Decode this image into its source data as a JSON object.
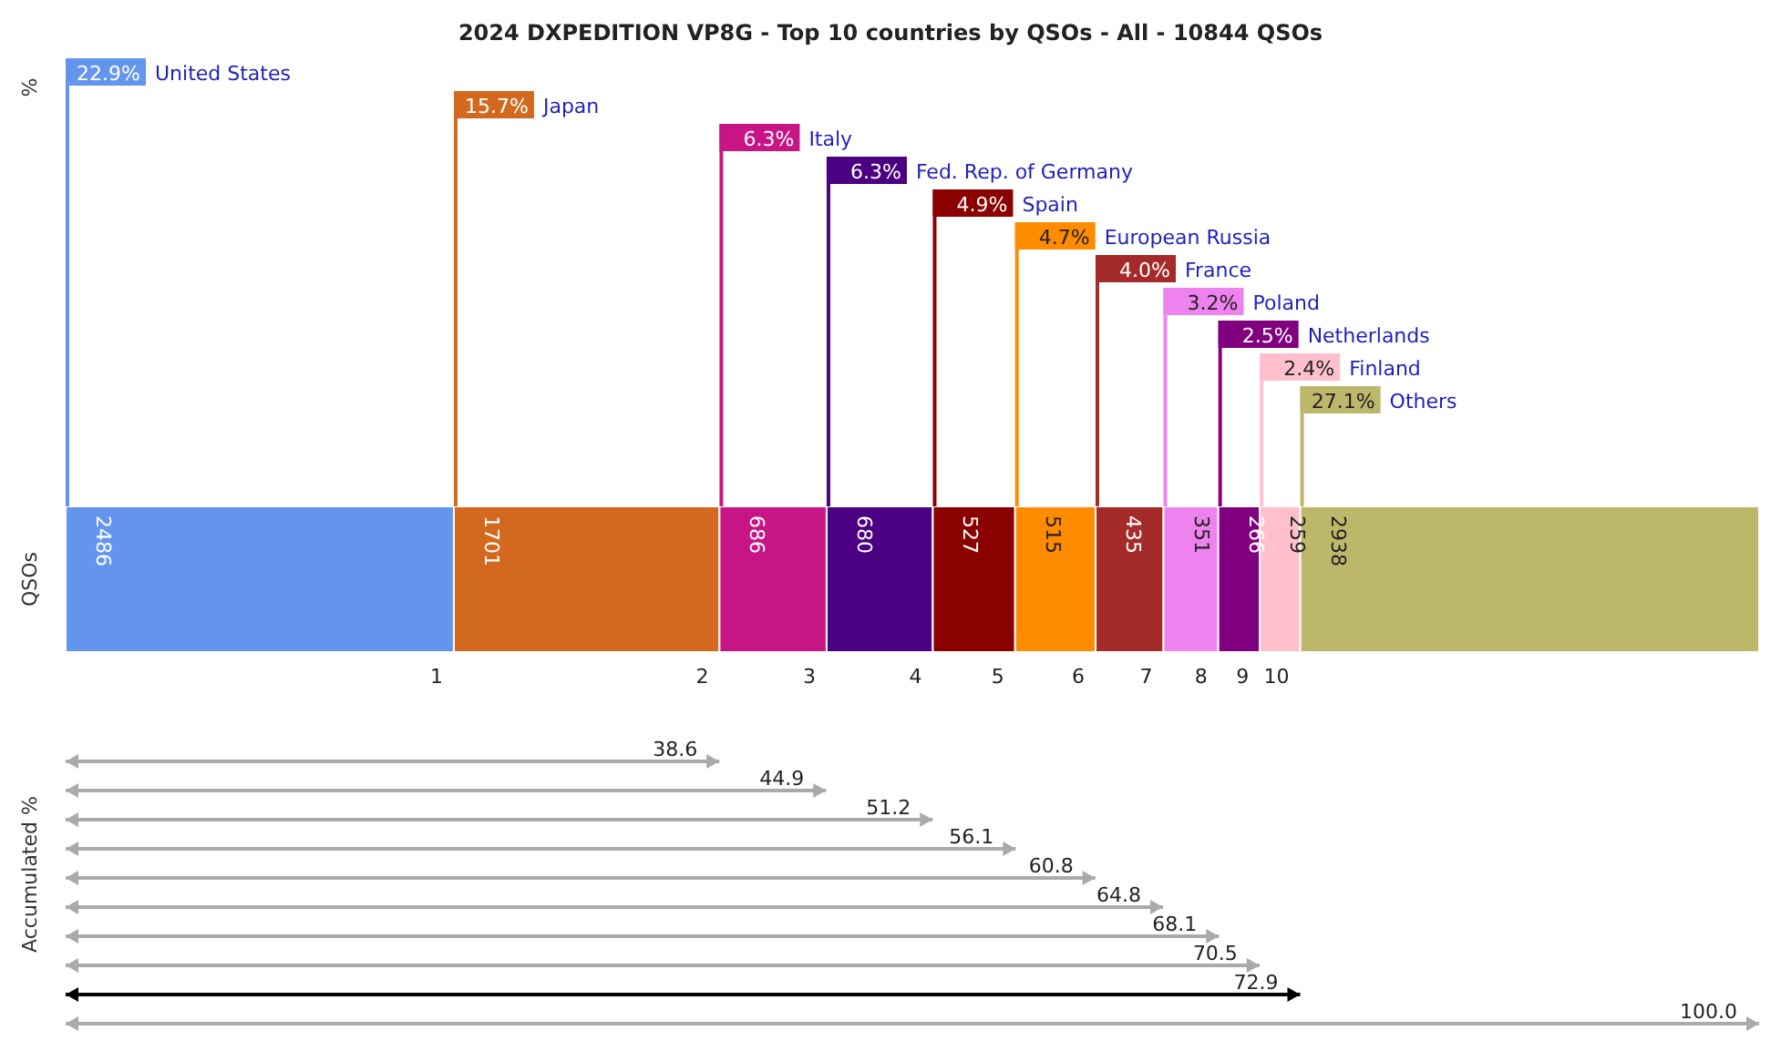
{
  "chart_data": [
    {
      "type": "other",
      "title": "2024 DXPEDITION VP8G - Top 10 countries by QSOs - All - 10844 QSOs",
      "ylabel": "%",
      "categories": [
        "United States",
        "Japan",
        "Italy",
        "Fed. Rep. of Germany",
        "Spain",
        "European Russia",
        "France",
        "Poland",
        "Netherlands",
        "Finland",
        "Others"
      ],
      "value_labels": [
        "22.9%",
        "15.7%",
        "6.3%",
        "6.3%",
        "4.9%",
        "4.7%",
        "4.0%",
        "3.2%",
        "2.5%",
        "2.4%",
        "27.1%"
      ],
      "colors": [
        "#6495ed",
        "#d2691e",
        "#c71585",
        "#4b0082",
        "#8b0000",
        "#ff8c00",
        "#a52a2a",
        "#ee82ee",
        "#800080",
        "#ffc0cb",
        "#bdb76b"
      ]
    },
    {
      "type": "bar",
      "orientation": "horizontal",
      "stacked": true,
      "ylabel": "QSOs",
      "categories": [
        null
      ],
      "xlim": [
        0,
        10844
      ],
      "data_labels": true,
      "tick_labels": false,
      "annotations": [
        "1",
        "2",
        "3",
        "4",
        "5",
        "6",
        "7",
        "8",
        "9",
        "10"
      ],
      "series": [
        {
          "color": "#6495ed",
          "values": [
            2486
          ]
        },
        {
          "color": "#d2691e",
          "values": [
            1701
          ]
        },
        {
          "color": "#c71585",
          "values": [
            686
          ]
        },
        {
          "color": "#4b0082",
          "values": [
            680
          ]
        },
        {
          "color": "#8b0000",
          "values": [
            527
          ]
        },
        {
          "color": "#ff8c00",
          "values": [
            515
          ]
        },
        {
          "color": "#a52a2a",
          "values": [
            435
          ]
        },
        {
          "color": "#ee82ee",
          "values": [
            351
          ]
        },
        {
          "color": "#800080",
          "values": [
            266
          ]
        },
        {
          "color": "#ffc0cb",
          "values": [
            259
          ]
        },
        {
          "color": "#bdb76b",
          "values": [
            2938
          ]
        }
      ]
    },
    {
      "type": "other",
      "ylabel": "Accumulated %",
      "categories": [
        null,
        null,
        null,
        null,
        null,
        null,
        null,
        null,
        null,
        null
      ],
      "value_labels": [
        "38.6",
        "44.9",
        "51.2",
        "56.1",
        "60.8",
        "64.8",
        "68.1",
        "70.5",
        "72.9",
        "100.0"
      ],
      "values": [
        38.6,
        44.9,
        51.2,
        56.1,
        60.8,
        64.8,
        68.1,
        70.5,
        72.9,
        100.0
      ],
      "colors": [
        "#aaaaaa",
        "#aaaaaa",
        "#aaaaaa",
        "#aaaaaa",
        "#aaaaaa",
        "#aaaaaa",
        "#aaaaaa",
        "#aaaaaa",
        "#000000",
        "#aaaaaa"
      ]
    }
  ]
}
